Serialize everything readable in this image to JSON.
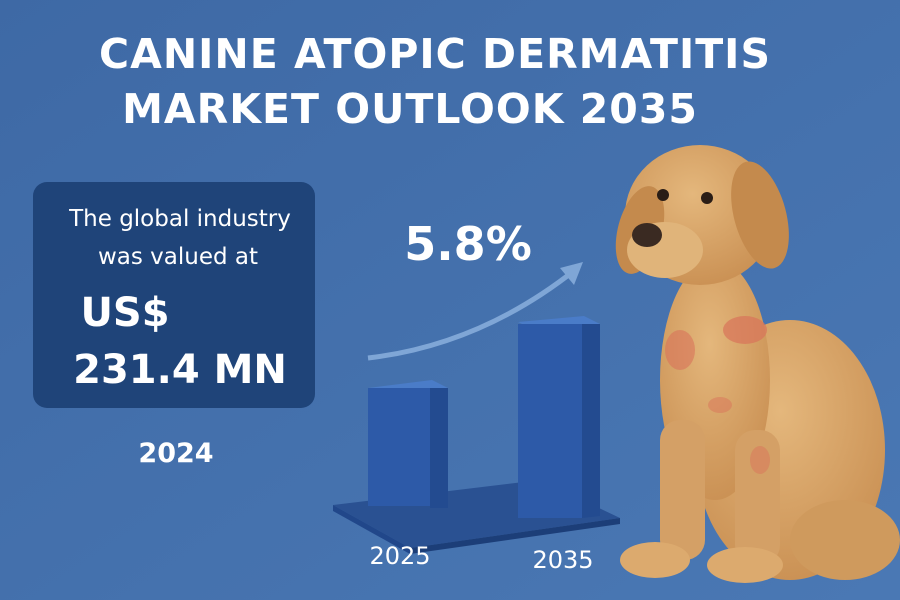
{
  "title": [
    "CANINE ATOPIC DERMATITIS",
    "MARKET OUTLOOK 2035"
  ],
  "info_box": {
    "text_lines": [
      "The global industry",
      "was valued at"
    ],
    "value_lines": [
      "US$",
      "231.4 MN"
    ]
  },
  "base_year": "2024",
  "growth": "5.8%",
  "bar_labels": [
    "2025",
    "2035"
  ]
}
